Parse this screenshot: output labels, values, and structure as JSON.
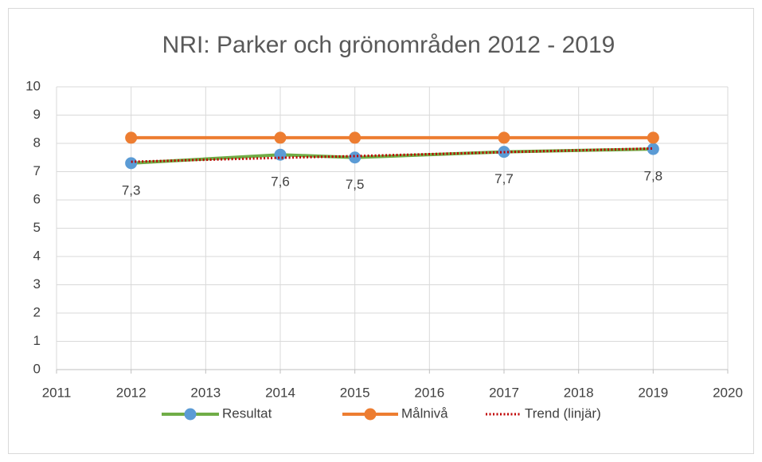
{
  "chart_data": {
    "type": "line",
    "title": "NRI: Parker och grönområden 2012 - 2019",
    "x": [
      2012,
      2014,
      2015,
      2017,
      2019
    ],
    "series": [
      {
        "name": "Resultat",
        "color": "#70ad47",
        "marker_color": "#5b9bd5",
        "values": [
          7.3,
          7.6,
          7.5,
          7.7,
          7.8
        ],
        "value_labels": [
          "7,3",
          "7,6",
          "7,5",
          "7,7",
          "7,8"
        ]
      },
      {
        "name": "Målnivå",
        "color": "#ed7d31",
        "marker_color": "#ed7d31",
        "values": [
          8.2,
          8.2,
          8.2,
          8.2,
          8.2
        ]
      },
      {
        "name": "Trend (linjär)",
        "color": "#c00000",
        "dashed": true,
        "values": [
          7.35,
          7.49,
          7.55,
          7.69,
          7.82
        ]
      }
    ],
    "xlim": [
      2011,
      2020
    ],
    "xticks": [
      2011,
      2012,
      2013,
      2014,
      2015,
      2016,
      2017,
      2018,
      2019,
      2020
    ],
    "ylim": [
      0,
      10
    ],
    "yticks": [
      0,
      1,
      2,
      3,
      4,
      5,
      6,
      7,
      8,
      9,
      10
    ],
    "grid": true,
    "legend": "bottom"
  }
}
